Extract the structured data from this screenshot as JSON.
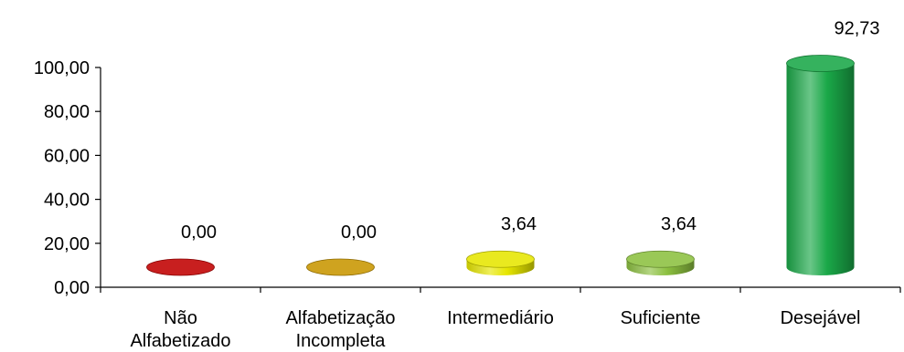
{
  "chart_data": {
    "type": "bar",
    "title": "",
    "xlabel": "",
    "ylabel": "",
    "ylim": [
      0,
      100
    ],
    "yticks": [
      "0,00",
      "20,00",
      "40,00",
      "60,00",
      "80,00",
      "100,00"
    ],
    "categories": [
      [
        "Não",
        "Alfabetizado"
      ],
      [
        "Alfabetização",
        "Incompleta"
      ],
      [
        "Intermediário"
      ],
      [
        "Suficiente"
      ],
      [
        "Desejável"
      ]
    ],
    "values": [
      0.0,
      0.0,
      3.64,
      3.64,
      92.73
    ],
    "value_labels": [
      "0,00",
      "0,00",
      "3,64",
      "3,64",
      "92,73"
    ],
    "colors": [
      "#c00000",
      "#c89600",
      "#e6e600",
      "#8cc040",
      "#1aa848"
    ],
    "grid": false,
    "legend": "none"
  }
}
